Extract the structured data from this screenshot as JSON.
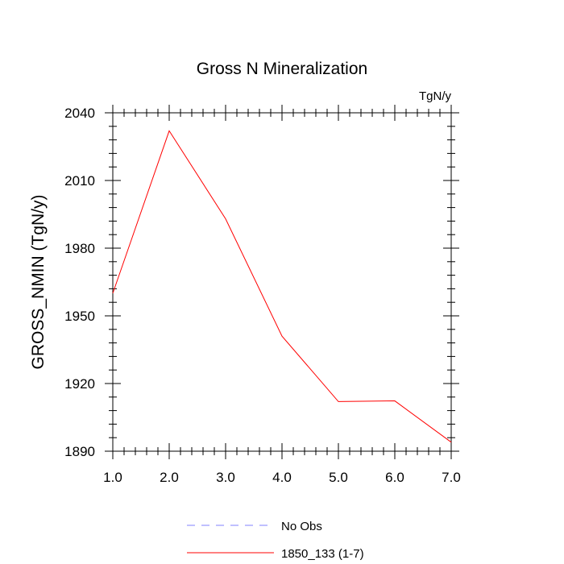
{
  "chart_data": {
    "type": "line",
    "title": "Gross N Mineralization",
    "units_label": "TgN/y",
    "ylabel": "GROSS_NMIN  (TgN/y)",
    "xlabel": "",
    "xlim": [
      1.0,
      7.0
    ],
    "ylim": [
      1890,
      2040
    ],
    "x_ticks": [
      1.0,
      2.0,
      3.0,
      4.0,
      5.0,
      6.0,
      7.0
    ],
    "x_tick_labels": [
      "1.0",
      "2.0",
      "3.0",
      "4.0",
      "5.0",
      "6.0",
      "7.0"
    ],
    "y_ticks": [
      1890,
      1920,
      1950,
      1980,
      2010,
      2040
    ],
    "y_tick_labels": [
      "1890",
      "1920",
      "1950",
      "1980",
      "2010",
      "2040"
    ],
    "grid": false,
    "legend_position": "bottom-center",
    "series": [
      {
        "name": "No Obs",
        "color": "#8080ff",
        "dash": "dashed",
        "x": [],
        "values": []
      },
      {
        "name": "1850_133 (1-7)",
        "color": "#ff0000",
        "dash": "solid",
        "x": [
          1.0,
          2.0,
          3.0,
          4.0,
          5.0,
          6.0,
          7.0
        ],
        "values": [
          1960,
          2032,
          1993,
          1941,
          1912,
          1912.3,
          1894
        ]
      }
    ]
  }
}
